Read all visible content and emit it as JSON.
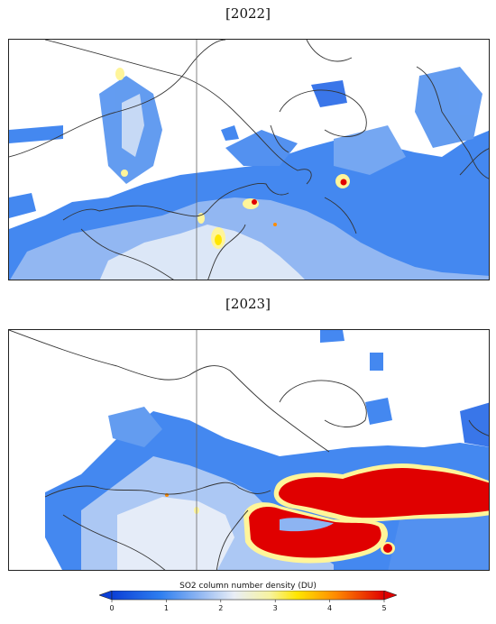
{
  "panels": [
    {
      "title": "[2022]"
    },
    {
      "title": "[2023]"
    }
  ],
  "colorbar": {
    "label": "SO2 column number density (DU)",
    "min": 0,
    "max": 5,
    "ticks": [
      "0",
      "1",
      "2",
      "3",
      "4",
      "5"
    ],
    "colors": [
      "#0b3fd6",
      "#2f7ff0",
      "#8fb6f2",
      "#e9eef6",
      "#f7f3a0",
      "#ffe600",
      "#ff8c00",
      "#e00000"
    ],
    "extend_low_color": "#0b3fd6",
    "extend_high_color": "#e00000"
  }
}
